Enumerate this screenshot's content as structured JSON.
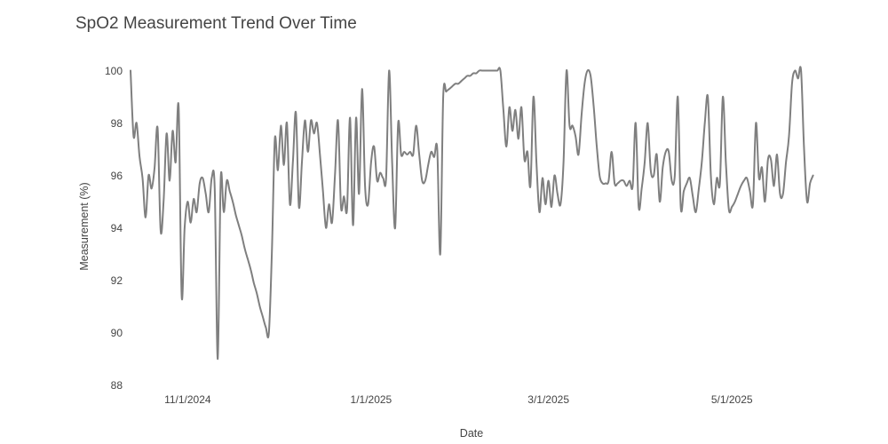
{
  "page": {
    "background_color": "#ffffff",
    "text_color": "#444444"
  },
  "chart": {
    "title": "SpO2 Measurement Trend Over Time",
    "x_axis_title": "Date",
    "y_axis_title": "Measurement (%)"
  },
  "chart_data": {
    "type": "line",
    "title": "SpO2 Measurement Trend Over Time",
    "xlabel": "Date",
    "ylabel": "Measurement (%)",
    "ylim": [
      88,
      100
    ],
    "grid": false,
    "legend": false,
    "line_color": "#7f7f7f",
    "line_width": 2,
    "y_ticks": [
      88,
      90,
      92,
      94,
      96,
      98,
      100
    ],
    "x_ticks": [
      {
        "label": "11/1/2024",
        "date": "2024-11-01"
      },
      {
        "label": "1/1/2025",
        "date": "2025-01-01"
      },
      {
        "label": "3/1/2025",
        "date": "2025-03-01"
      },
      {
        "label": "5/1/2025",
        "date": "2025-05-01"
      }
    ],
    "series": [
      {
        "name": "SpO2",
        "frequency": "daily",
        "start_date": "2024-10-13",
        "end_date": "2025-05-28",
        "values": [
          100,
          97.5,
          98,
          96.7,
          95.9,
          94.4,
          96,
          95.5,
          96.3,
          97.8,
          93.9,
          95,
          97.6,
          95.8,
          97.7,
          96.5,
          98.6,
          91.4,
          94,
          95,
          94.2,
          95.1,
          94.6,
          95.7,
          95.9,
          95.3,
          94.6,
          95.9,
          95.5,
          89,
          95.9,
          94.6,
          95.8,
          95.4,
          95,
          94.5,
          94.1,
          93.7,
          93.2,
          92.8,
          92.4,
          91.9,
          91.5,
          91,
          90.6,
          90.2,
          90,
          93,
          97.4,
          96.2,
          97.9,
          96.4,
          98,
          94.9,
          96.5,
          98.4,
          94.8,
          96.5,
          98.1,
          96.9,
          98.1,
          97.6,
          98,
          96.8,
          95.4,
          94,
          94.9,
          94.2,
          96,
          98.1,
          94.8,
          95.2,
          94.7,
          98.2,
          94.1,
          98.2,
          95.3,
          99.3,
          95.6,
          94.9,
          96.5,
          97.1,
          95.8,
          96.1,
          95.9,
          95.9,
          100,
          96.5,
          94,
          98,
          96.8,
          96.9,
          96.8,
          96.9,
          96.8,
          97.9,
          96.8,
          95.8,
          95.8,
          96.4,
          96.9,
          96.7,
          97,
          93,
          99,
          99.2,
          99.3,
          99.4,
          99.5,
          99.5,
          99.6,
          99.7,
          99.8,
          99.8,
          99.9,
          99.9,
          100,
          100,
          100,
          100,
          100,
          100,
          100,
          100,
          98.5,
          97.1,
          98.6,
          97.7,
          98.5,
          97.4,
          98.6,
          96.6,
          96.9,
          95.6,
          99,
          96.5,
          94.6,
          95.9,
          94.9,
          95.8,
          94.8,
          96,
          95.3,
          94.9,
          96.5,
          100,
          97.9,
          97.9,
          97.5,
          96.8,
          98.3,
          99.5,
          100,
          99.8,
          98.7,
          97.2,
          96,
          95.7,
          95.7,
          95.8,
          96.9,
          95.7,
          95.7,
          95.8,
          95.8,
          95.6,
          95.8,
          95.6,
          98,
          94.8,
          95.5,
          96.5,
          98,
          96.2,
          96,
          96.8,
          95,
          96.3,
          96.9,
          96.9,
          95.8,
          96,
          99,
          94.8,
          95.4,
          95.7,
          95.9,
          95.2,
          94.6,
          95.5,
          96.5,
          98,
          99,
          96,
          94.9,
          95.9,
          95.7,
          99,
          96.5,
          94.7,
          94.8,
          95,
          95.3,
          95.6,
          95.8,
          95.9,
          95.4,
          94.9,
          98,
          95.9,
          96.3,
          95,
          96.6,
          96.6,
          95.6,
          96.8,
          95.3,
          95.3,
          96.5,
          97.5,
          99.5,
          100,
          99.7,
          100,
          97,
          95,
          95.7,
          96
        ]
      }
    ]
  }
}
